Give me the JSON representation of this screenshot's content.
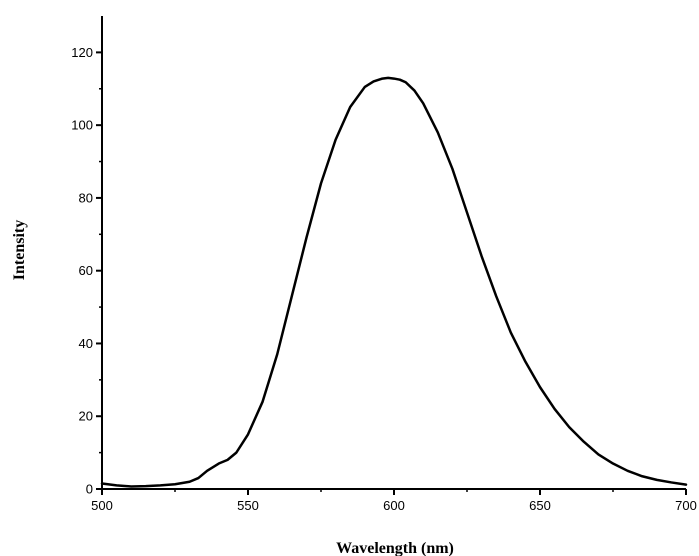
{
  "chart_data": {
    "type": "line",
    "title": "",
    "xlabel": "Wavelength (nm)",
    "ylabel": "Intensity",
    "xlim": [
      500,
      700
    ],
    "ylim": [
      0,
      130
    ],
    "x_ticks": [
      500,
      550,
      600,
      650,
      700
    ],
    "y_ticks": [
      0,
      20,
      40,
      60,
      80,
      100,
      120
    ],
    "grid": false,
    "legend": "none",
    "line_color": "#000000",
    "series": [
      {
        "x": [
          500,
          505,
          510,
          515,
          520,
          525,
          530,
          533,
          536,
          540,
          543,
          546,
          550,
          555,
          560,
          565,
          570,
          575,
          580,
          585,
          590,
          593,
          596,
          598,
          600,
          602,
          604,
          607,
          610,
          615,
          620,
          625,
          630,
          635,
          640,
          645,
          650,
          655,
          660,
          665,
          670,
          675,
          680,
          685,
          690,
          695,
          700
        ],
        "values": [
          1.5,
          1.0,
          0.7,
          0.8,
          1.0,
          1.3,
          2.0,
          3.0,
          5.0,
          7.0,
          8.0,
          10.0,
          15.0,
          24.0,
          37.0,
          53.0,
          69.0,
          84.0,
          96.0,
          105.0,
          110.5,
          112.0,
          112.8,
          113.0,
          112.8,
          112.5,
          111.8,
          109.5,
          106.0,
          98.0,
          88.0,
          76.0,
          64.0,
          53.0,
          43.0,
          35.0,
          28.0,
          22.0,
          17.0,
          13.0,
          9.5,
          7.0,
          5.0,
          3.5,
          2.5,
          1.8,
          1.2
        ]
      }
    ]
  }
}
